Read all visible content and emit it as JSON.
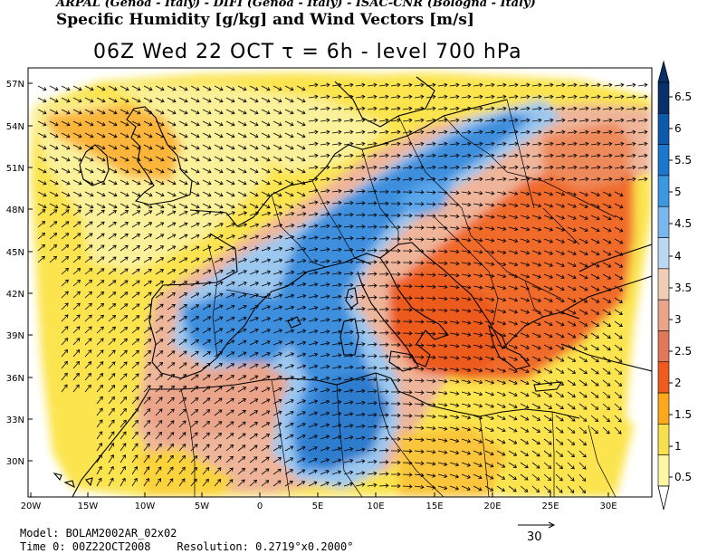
{
  "header": {
    "credit": "ARPAL (Genoa - Italy)  -  DIFI (Genoa - Italy)  -  ISAC-CNR (Bologna - Italy)",
    "title": "Specific Humidity [g/kg] and Wind Vectors [m/s]",
    "subtitle": "06Z Wed 22 OCT  τ = 6h  -  level 700 hPa"
  },
  "map": {
    "lat_ticks": [
      "57N",
      "54N",
      "51N",
      "48N",
      "45N",
      "42N",
      "39N",
      "36N",
      "33N",
      "30N"
    ],
    "lon_ticks": [
      "20W",
      "15W",
      "10W",
      "5W",
      "0",
      "5E",
      "10E",
      "15E",
      "20E",
      "25E",
      "30E"
    ],
    "extent": {
      "lon_min": -20,
      "lon_max": 33.5,
      "lat_min": 27.5,
      "lat_max": 58
    }
  },
  "colorbar": {
    "labels": [
      "6.5",
      "6",
      "5.5",
      "5",
      "4.5",
      "4",
      "3.5",
      "3",
      "2.5",
      "2",
      "1.5",
      "1",
      "0.5"
    ],
    "colors": [
      "#08306b",
      "#0b5aab",
      "#1b78cf",
      "#3d98e2",
      "#78b8ee",
      "#bcd7f2",
      "#f2cdb6",
      "#e9a48a",
      "#e2785a",
      "#f15a1e",
      "#fba919",
      "#f8df4c",
      "#fbf7a3"
    ]
  },
  "footer": {
    "model": "Model: BOLAM2002AR_02x02",
    "time": "Time 0: 00Z22OCT2008",
    "resolution": "Resolution: 0.2719°x0.2000°",
    "ref_vector": "30"
  }
}
